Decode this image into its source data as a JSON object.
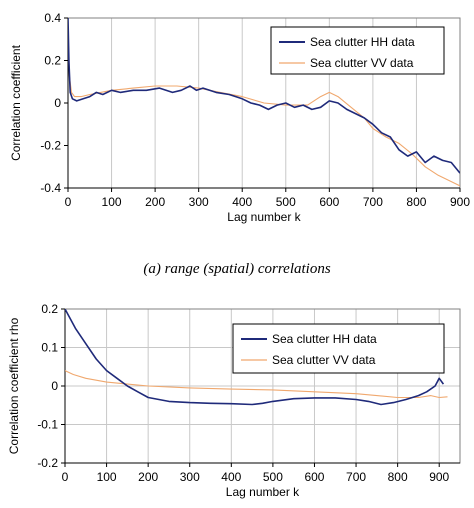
{
  "caption_a": "(a) range (spatial) correlations",
  "chart_data": [
    {
      "type": "line",
      "title": "",
      "xlabel": "Lag number k",
      "ylabel": "Correlation coefficient",
      "xlim": [
        0,
        900
      ],
      "ylim": [
        -0.4,
        0.4
      ],
      "xticks": [
        "0",
        "100",
        "200",
        "300",
        "400",
        "500",
        "600",
        "700",
        "800",
        "900"
      ],
      "yticks": [
        "-0.4",
        "-0.2",
        "0",
        "0.2",
        "0.4"
      ],
      "grid": "vertical",
      "legend_position": "top-right",
      "series": [
        {
          "name": "Sea clutter HH data",
          "color": "#1f2a7a",
          "x": [
            0,
            2,
            5,
            10,
            20,
            35,
            50,
            65,
            80,
            100,
            120,
            150,
            180,
            210,
            240,
            260,
            280,
            295,
            310,
            340,
            370,
            400,
            420,
            440,
            460,
            480,
            500,
            520,
            540,
            560,
            580,
            600,
            620,
            640,
            660,
            680,
            700,
            720,
            740,
            760,
            780,
            800,
            820,
            840,
            860,
            880,
            900
          ],
          "y": [
            0.4,
            0.2,
            0.05,
            0.02,
            0.01,
            0.02,
            0.03,
            0.05,
            0.04,
            0.06,
            0.05,
            0.06,
            0.06,
            0.07,
            0.05,
            0.06,
            0.08,
            0.06,
            0.07,
            0.05,
            0.04,
            0.02,
            0.0,
            -0.01,
            -0.03,
            -0.01,
            0.0,
            -0.02,
            -0.01,
            -0.03,
            -0.02,
            0.01,
            0.0,
            -0.03,
            -0.05,
            -0.07,
            -0.1,
            -0.14,
            -0.16,
            -0.22,
            -0.25,
            -0.23,
            -0.28,
            -0.25,
            -0.27,
            -0.28,
            -0.33
          ]
        },
        {
          "name": "Sea clutter VV data",
          "color": "#f0a86e",
          "x": [
            0,
            3,
            8,
            15,
            30,
            50,
            75,
            100,
            150,
            200,
            250,
            300,
            350,
            400,
            450,
            500,
            550,
            580,
            600,
            620,
            650,
            680,
            700,
            730,
            760,
            790,
            820,
            850,
            880,
            900
          ],
          "y": [
            0.35,
            0.13,
            0.05,
            0.03,
            0.03,
            0.04,
            0.05,
            0.06,
            0.07,
            0.08,
            0.08,
            0.07,
            0.05,
            0.03,
            0.0,
            -0.01,
            -0.01,
            0.03,
            0.05,
            0.03,
            -0.02,
            -0.07,
            -0.12,
            -0.16,
            -0.19,
            -0.24,
            -0.3,
            -0.34,
            -0.37,
            -0.39
          ]
        }
      ]
    },
    {
      "type": "line",
      "title": "",
      "xlabel": "Lag number k",
      "ylabel": "Correlation coefficient rho",
      "xlim": [
        0,
        950
      ],
      "ylim": [
        -0.2,
        0.2
      ],
      "xticks": [
        "0",
        "100",
        "200",
        "300",
        "400",
        "500",
        "600",
        "700",
        "800",
        "900"
      ],
      "yticks": [
        "-0.2",
        "-0.1",
        "0",
        "0.1",
        "0.2"
      ],
      "grid": "both",
      "legend_position": "top-right",
      "series": [
        {
          "name": "Sea clutter HH data",
          "color": "#1f2a7a",
          "x": [
            0,
            10,
            25,
            50,
            75,
            100,
            125,
            150,
            175,
            200,
            250,
            300,
            350,
            400,
            450,
            475,
            500,
            550,
            600,
            650,
            700,
            730,
            760,
            790,
            820,
            850,
            870,
            890,
            900,
            910
          ],
          "y": [
            0.2,
            0.18,
            0.15,
            0.11,
            0.07,
            0.04,
            0.02,
            0.0,
            -0.015,
            -0.03,
            -0.04,
            -0.043,
            -0.045,
            -0.046,
            -0.048,
            -0.045,
            -0.04,
            -0.033,
            -0.031,
            -0.031,
            -0.035,
            -0.04,
            -0.048,
            -0.043,
            -0.035,
            -0.025,
            -0.015,
            0.0,
            0.02,
            0.005
          ]
        },
        {
          "name": "Sea clutter VV data",
          "color": "#f0a86e",
          "x": [
            0,
            20,
            50,
            100,
            150,
            200,
            300,
            400,
            500,
            600,
            700,
            750,
            800,
            850,
            880,
            900,
            920
          ],
          "y": [
            0.04,
            0.03,
            0.02,
            0.01,
            0.005,
            0.0,
            -0.005,
            -0.008,
            -0.01,
            -0.015,
            -0.02,
            -0.025,
            -0.03,
            -0.03,
            -0.025,
            -0.03,
            -0.028
          ]
        }
      ]
    }
  ]
}
